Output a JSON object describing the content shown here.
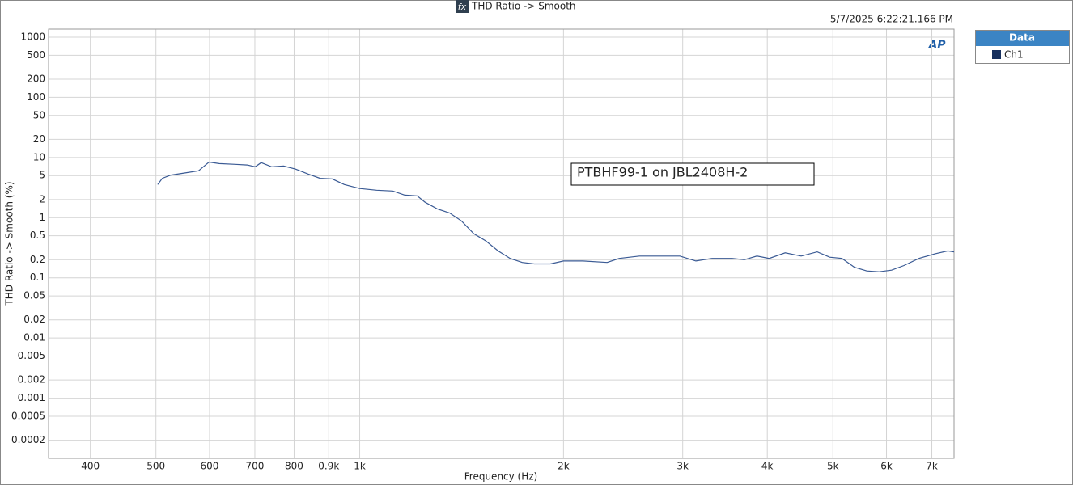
{
  "chart_data": {
    "type": "line",
    "icon": "fx",
    "title": "THD Ratio -> Smooth",
    "timestamp": "5/7/2025 6:22:21.166 PM",
    "logo": "AP",
    "xlabel": "Frequency (Hz)",
    "ylabel": "THD Ratio -> Smooth (%)",
    "annotation": "PTBHF99-1 on JBL2408H-2",
    "legend_title": "Data",
    "x": [
      503,
      511,
      526,
      555,
      578,
      599,
      620,
      655,
      682,
      701,
      715,
      741,
      772,
      804,
      839,
      874,
      911,
      949,
      1000,
      1059,
      1119,
      1166,
      1216,
      1249,
      1302,
      1357,
      1414,
      1474,
      1536,
      1601,
      1668,
      1738,
      1811,
      1912,
      2000,
      2137,
      2320,
      2417,
      2589,
      2812,
      2971,
      3138,
      3314,
      3550,
      3700,
      3862,
      4026,
      4251,
      4489,
      4740,
      4945,
      5157,
      5379,
      5611,
      5852,
      6105,
      6368,
      6700,
      7072,
      7393,
      7550
    ],
    "series": [
      {
        "name": "Ch1",
        "color": "#3a5a94",
        "values": [
          3.55,
          4.5,
          5.1,
          5.6,
          6.0,
          8.4,
          7.9,
          7.7,
          7.5,
          7.0,
          8.2,
          7.0,
          7.2,
          6.4,
          5.3,
          4.5,
          4.4,
          3.55,
          3.05,
          2.86,
          2.77,
          2.37,
          2.3,
          1.8,
          1.4,
          1.2,
          0.88,
          0.54,
          0.41,
          0.28,
          0.21,
          0.18,
          0.17,
          0.17,
          0.19,
          0.19,
          0.18,
          0.21,
          0.23,
          0.23,
          0.23,
          0.19,
          0.21,
          0.21,
          0.2,
          0.23,
          0.21,
          0.26,
          0.23,
          0.27,
          0.22,
          0.21,
          0.15,
          0.13,
          0.126,
          0.134,
          0.16,
          0.21,
          0.25,
          0.28,
          0.27
        ]
      }
    ],
    "legend_marker_color": "#17305e",
    "xscale": "log",
    "yscale": "log",
    "xlim": [
      347,
      7550
    ],
    "ylim": [
      0.0001,
      1360
    ],
    "xticks": [
      400,
      500,
      600,
      700,
      800,
      {
        "value": 900,
        "label": "0.9k"
      },
      {
        "value": 1000,
        "label": "1k"
      },
      {
        "value": 2000,
        "label": "2k"
      },
      {
        "value": 3000,
        "label": "3k"
      },
      {
        "value": 4000,
        "label": "4k"
      },
      {
        "value": 5000,
        "label": "5k"
      },
      {
        "value": 6000,
        "label": "6k"
      },
      {
        "value": 7000,
        "label": "7k"
      }
    ],
    "yticks": [
      1000,
      500,
      200,
      100,
      50,
      20,
      10,
      5,
      2,
      1,
      0.5,
      0.2,
      0.1,
      0.05,
      0.02,
      0.01,
      0.005,
      0.002,
      0.001,
      0.0005,
      0.0002
    ],
    "grid": true
  }
}
